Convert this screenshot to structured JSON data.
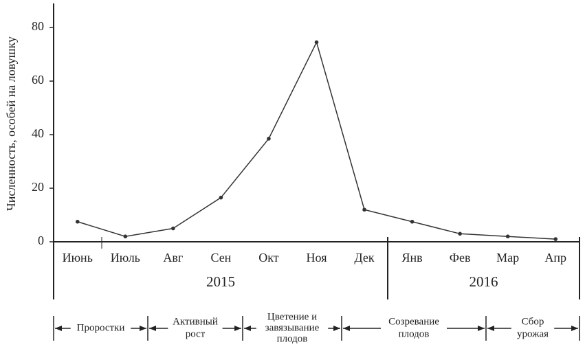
{
  "chart_data": {
    "type": "line",
    "y_label": "Численность, особей на ловушку",
    "categories": [
      "Июнь",
      "Июль",
      "Авг",
      "Сен",
      "Окт",
      "Ноя",
      "Дек",
      "Янв",
      "Фев",
      "Мар",
      "Апр"
    ],
    "values": [
      7.5,
      2,
      5,
      16.5,
      38.5,
      74.5,
      12,
      7.5,
      3,
      2,
      1
    ],
    "color": "#333333",
    "ylim": [
      0,
      89
    ],
    "yticks": [
      0,
      20,
      40,
      60,
      80
    ],
    "years": [
      "2015",
      "2016"
    ],
    "phases": [
      [
        "Проростки"
      ],
      [
        "Активный",
        "рост"
      ],
      [
        "Цветение и",
        "завязывание",
        "плодов"
      ],
      [
        "Созревание",
        "плодов"
      ],
      [
        "Сбор",
        "урожая"
      ]
    ]
  }
}
